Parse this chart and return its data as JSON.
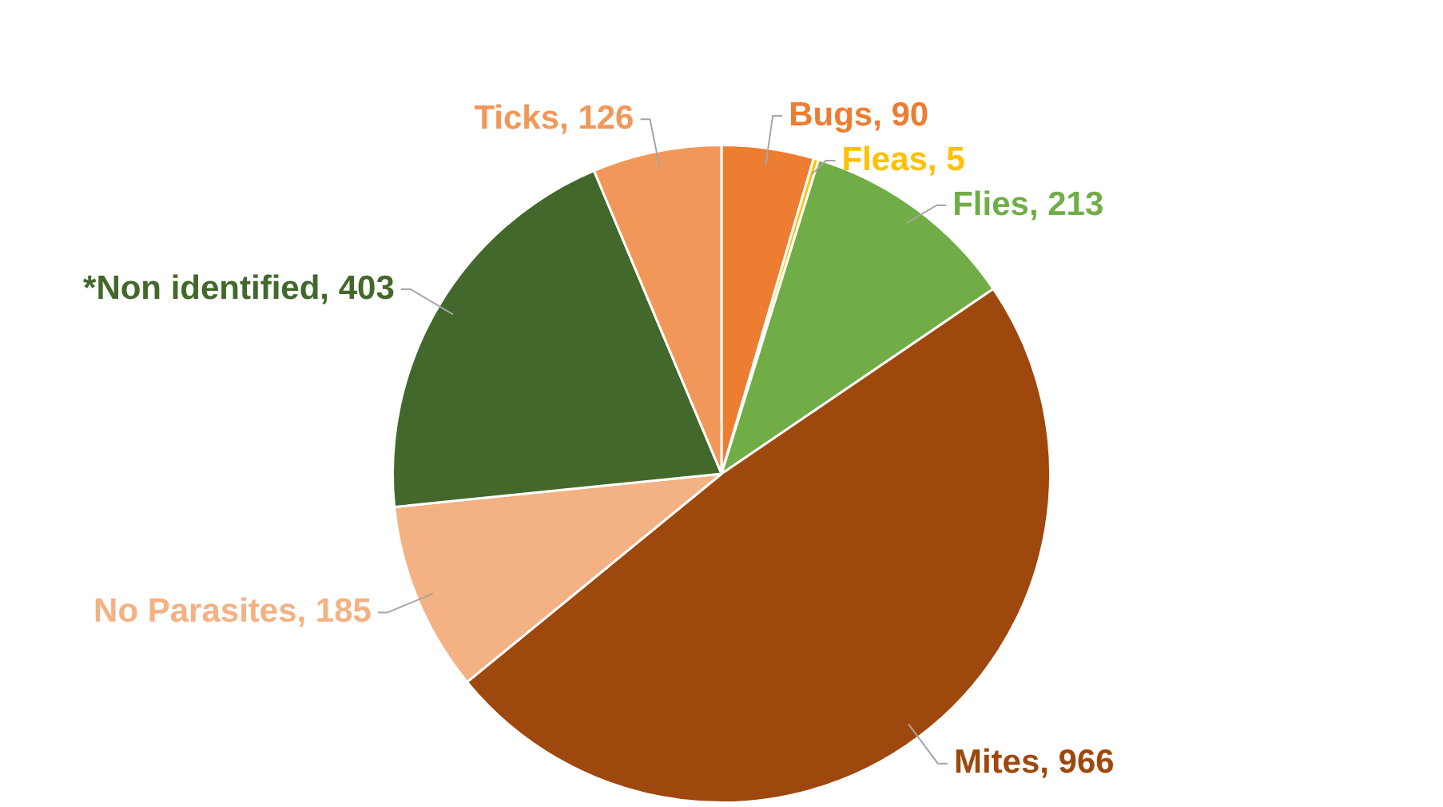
{
  "chart_data": {
    "type": "pie",
    "categories": [
      "Bugs",
      "Fleas",
      "Flies",
      "Mites",
      "No Parasites",
      "*Non identified",
      "Ticks"
    ],
    "values": [
      90,
      5,
      213,
      966,
      185,
      403,
      126
    ],
    "colors": [
      "#ed7d31",
      "#ffc000",
      "#70ad47",
      "#9e480e",
      "#f4b183",
      "#43682b",
      "#f1975a"
    ],
    "value_labels": [
      ", 90",
      ", 5",
      ", 213",
      ", 966",
      ", 185",
      ", 403",
      ", 126"
    ],
    "legend": false
  }
}
